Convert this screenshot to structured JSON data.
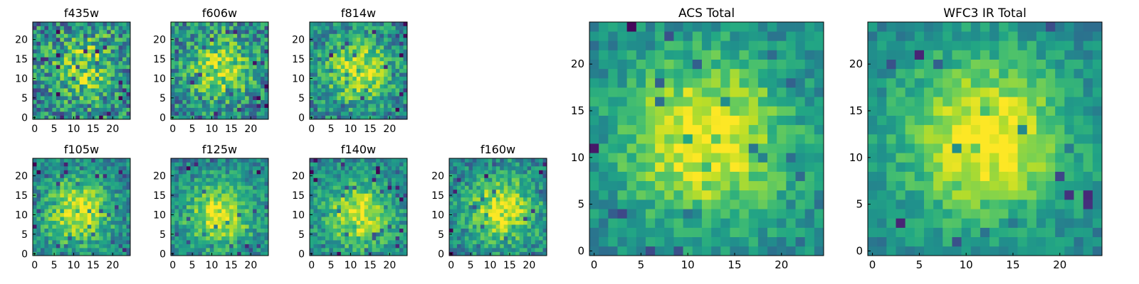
{
  "figure": {
    "background": "#ffffff",
    "colormap": "viridis"
  },
  "chart_data": [
    {
      "type": "heatmap",
      "title": "f435w",
      "rows": 25,
      "cols": 25,
      "x_ticks": [
        0,
        5,
        10,
        15,
        20
      ],
      "y_ticks": [
        0,
        5,
        10,
        15,
        20
      ],
      "xlim": [
        0,
        25
      ],
      "ylim": [
        0,
        25
      ],
      "center": [
        13,
        13
      ],
      "peak": 0.82,
      "noise": 0.3
    },
    {
      "type": "heatmap",
      "title": "f606w",
      "rows": 25,
      "cols": 25,
      "x_ticks": [
        0,
        5,
        10,
        15,
        20
      ],
      "y_ticks": [
        0,
        5,
        10,
        15,
        20
      ],
      "xlim": [
        0,
        25
      ],
      "ylim": [
        0,
        25
      ],
      "center": [
        12,
        13
      ],
      "peak": 0.86,
      "noise": 0.26
    },
    {
      "type": "heatmap",
      "title": "f814w",
      "rows": 25,
      "cols": 25,
      "x_ticks": [
        0,
        5,
        10,
        15,
        20
      ],
      "y_ticks": [
        0,
        5,
        10,
        15,
        20
      ],
      "xlim": [
        0,
        25
      ],
      "ylim": [
        0,
        25
      ],
      "center": [
        12,
        12
      ],
      "peak": 0.92,
      "noise": 0.22
    },
    {
      "type": "heatmap",
      "title": "f105w",
      "rows": 25,
      "cols": 25,
      "x_ticks": [
        0,
        5,
        10,
        15,
        20
      ],
      "y_ticks": [
        0,
        5,
        10,
        15,
        20
      ],
      "xlim": [
        0,
        25
      ],
      "ylim": [
        0,
        25
      ],
      "center": [
        11,
        11
      ],
      "peak": 0.95,
      "noise": 0.18
    },
    {
      "type": "heatmap",
      "title": "f125w",
      "rows": 25,
      "cols": 25,
      "x_ticks": [
        0,
        5,
        10,
        15,
        20
      ],
      "y_ticks": [
        0,
        5,
        10,
        15,
        20
      ],
      "xlim": [
        0,
        25
      ],
      "ylim": [
        0,
        25
      ],
      "center": [
        12,
        10
      ],
      "peak": 0.95,
      "noise": 0.18
    },
    {
      "type": "heatmap",
      "title": "f140w",
      "rows": 25,
      "cols": 25,
      "x_ticks": [
        0,
        5,
        10,
        15,
        20
      ],
      "y_ticks": [
        0,
        5,
        10,
        15,
        20
      ],
      "xlim": [
        0,
        25
      ],
      "ylim": [
        0,
        25
      ],
      "center": [
        12,
        10
      ],
      "peak": 0.95,
      "noise": 0.18
    },
    {
      "type": "heatmap",
      "title": "f160w",
      "rows": 25,
      "cols": 25,
      "x_ticks": [
        0,
        5,
        10,
        15,
        20
      ],
      "y_ticks": [
        0,
        5,
        10,
        15,
        20
      ],
      "xlim": [
        0,
        25
      ],
      "ylim": [
        0,
        25
      ],
      "center": [
        13,
        11
      ],
      "peak": 0.95,
      "noise": 0.2
    },
    {
      "type": "heatmap",
      "title": "ACS Total",
      "rows": 25,
      "cols": 25,
      "x_ticks": [
        0,
        5,
        10,
        15,
        20
      ],
      "y_ticks": [
        0,
        5,
        10,
        15,
        20
      ],
      "xlim": [
        0,
        25
      ],
      "ylim": [
        0,
        25
      ],
      "center": [
        12,
        12
      ],
      "peak": 1.0,
      "noise": 0.14
    },
    {
      "type": "heatmap",
      "title": "WFC3 IR Total",
      "rows": 25,
      "cols": 25,
      "x_ticks": [
        0,
        5,
        10,
        15,
        20
      ],
      "y_ticks": [
        0,
        5,
        10,
        15,
        20
      ],
      "xlim": [
        0,
        25
      ],
      "ylim": [
        0,
        25
      ],
      "center": [
        12,
        12
      ],
      "peak": 1.0,
      "noise": 0.12
    }
  ]
}
